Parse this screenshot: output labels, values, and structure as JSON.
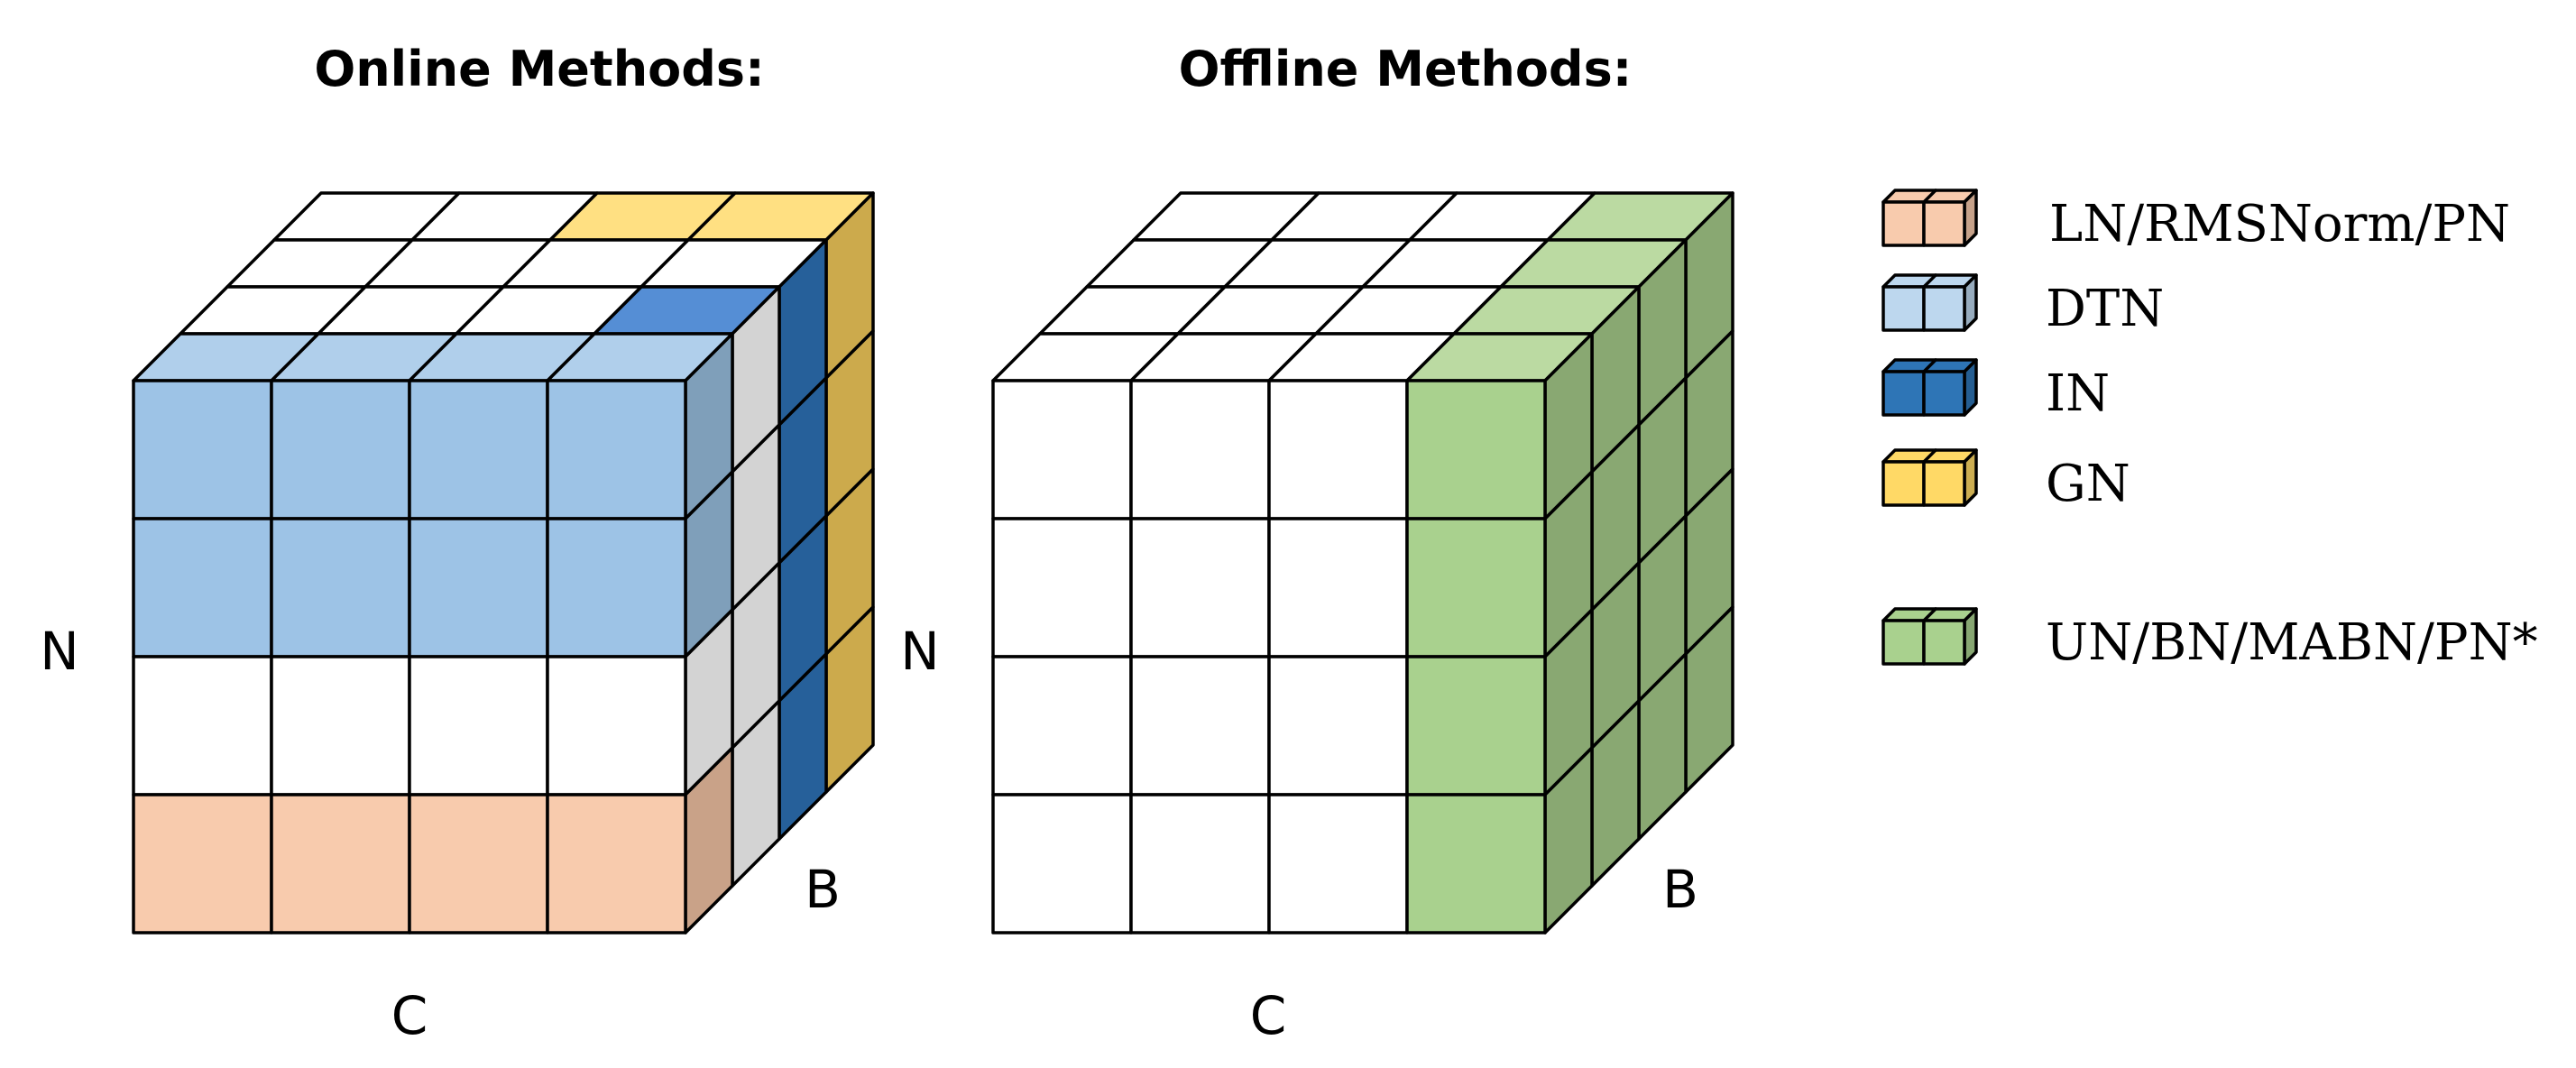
{
  "titles": {
    "online": "Online Methods:",
    "offline": "Offline Methods:"
  },
  "axes": {
    "online": {
      "n": "N",
      "c": "C",
      "b": "B"
    },
    "offline": {
      "n": "N",
      "c": "C",
      "b": "B"
    }
  },
  "legend": [
    {
      "label": "LN/RMSNorm/PN",
      "color": "#F8CBAD"
    },
    {
      "label": "DTN",
      "color": "#BDD7EE"
    },
    {
      "label": "IN",
      "color": "#2E75B6"
    },
    {
      "label": "GN",
      "color": "#FFD966"
    },
    {
      "label": "UN/BN/MABN/PN*",
      "color": "#A9D18E"
    }
  ],
  "colors": {
    "ln_front": "#F8CBAD",
    "ln_side": "#C9A288",
    "dtn_front": "#9DC3E6",
    "dtn_top": "#B0CFEB",
    "dtn_side": "#7F9FBA",
    "in_top": "#558ED5",
    "in_side": "#26609A",
    "gn_top": "#FFE082",
    "gn_side": "#CCAA4C",
    "gray_side": "#D3D3D3",
    "green_front": "#A9D18E",
    "green_top": "#BBDAA2",
    "green_side": "#89A872"
  }
}
